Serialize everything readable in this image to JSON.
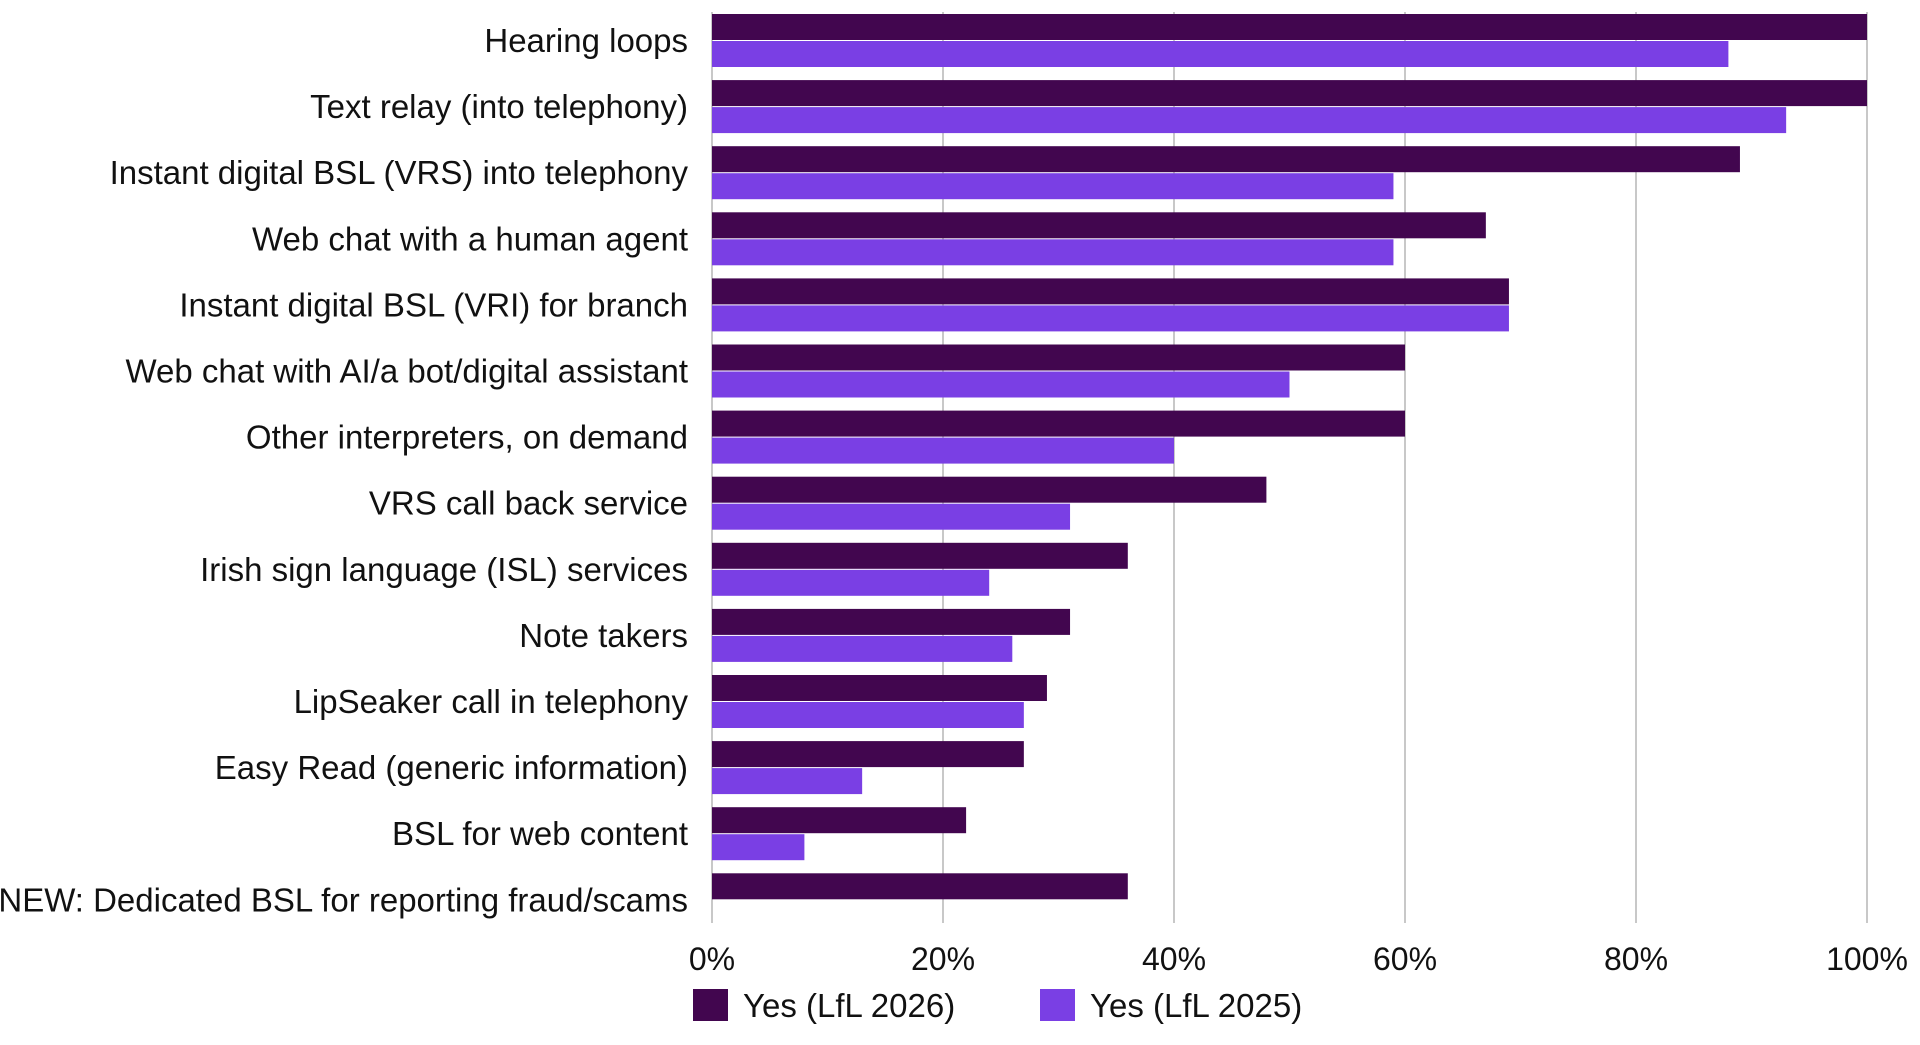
{
  "chart_data": {
    "type": "bar",
    "orientation": "horizontal",
    "categories": [
      "Hearing loops",
      "Text relay (into telephony)",
      "Instant digital BSL (VRS) into telephony",
      "Web chat with a human agent",
      "Instant digital BSL (VRI) for branch",
      "Web chat with AI/a bot/digital assistant",
      "Other interpreters, on demand",
      "VRS call back service",
      "Irish sign language (ISL) services",
      "Note takers",
      "LipSeaker call in telephony",
      "Easy Read (generic information)",
      "BSL for web content",
      "NEW: Dedicated BSL for reporting fraud/scams"
    ],
    "series": [
      {
        "name": "Yes (LfL 2026)",
        "color": "#42064f",
        "values": [
          100,
          100,
          89,
          67,
          69,
          60,
          60,
          48,
          36,
          31,
          29,
          27,
          22,
          36
        ]
      },
      {
        "name": "Yes (LfL 2025)",
        "color": "#7a3fe4",
        "values": [
          88,
          93,
          59,
          59,
          69,
          50,
          40,
          31,
          24,
          26,
          27,
          13,
          8,
          null
        ]
      }
    ],
    "xlim": [
      0,
      100
    ],
    "xticks": [
      "0%",
      "20%",
      "40%",
      "60%",
      "80%",
      "100%"
    ],
    "xtick_values": [
      0,
      20,
      40,
      60,
      80,
      100
    ],
    "grid": true,
    "legend_position": "bottom"
  }
}
